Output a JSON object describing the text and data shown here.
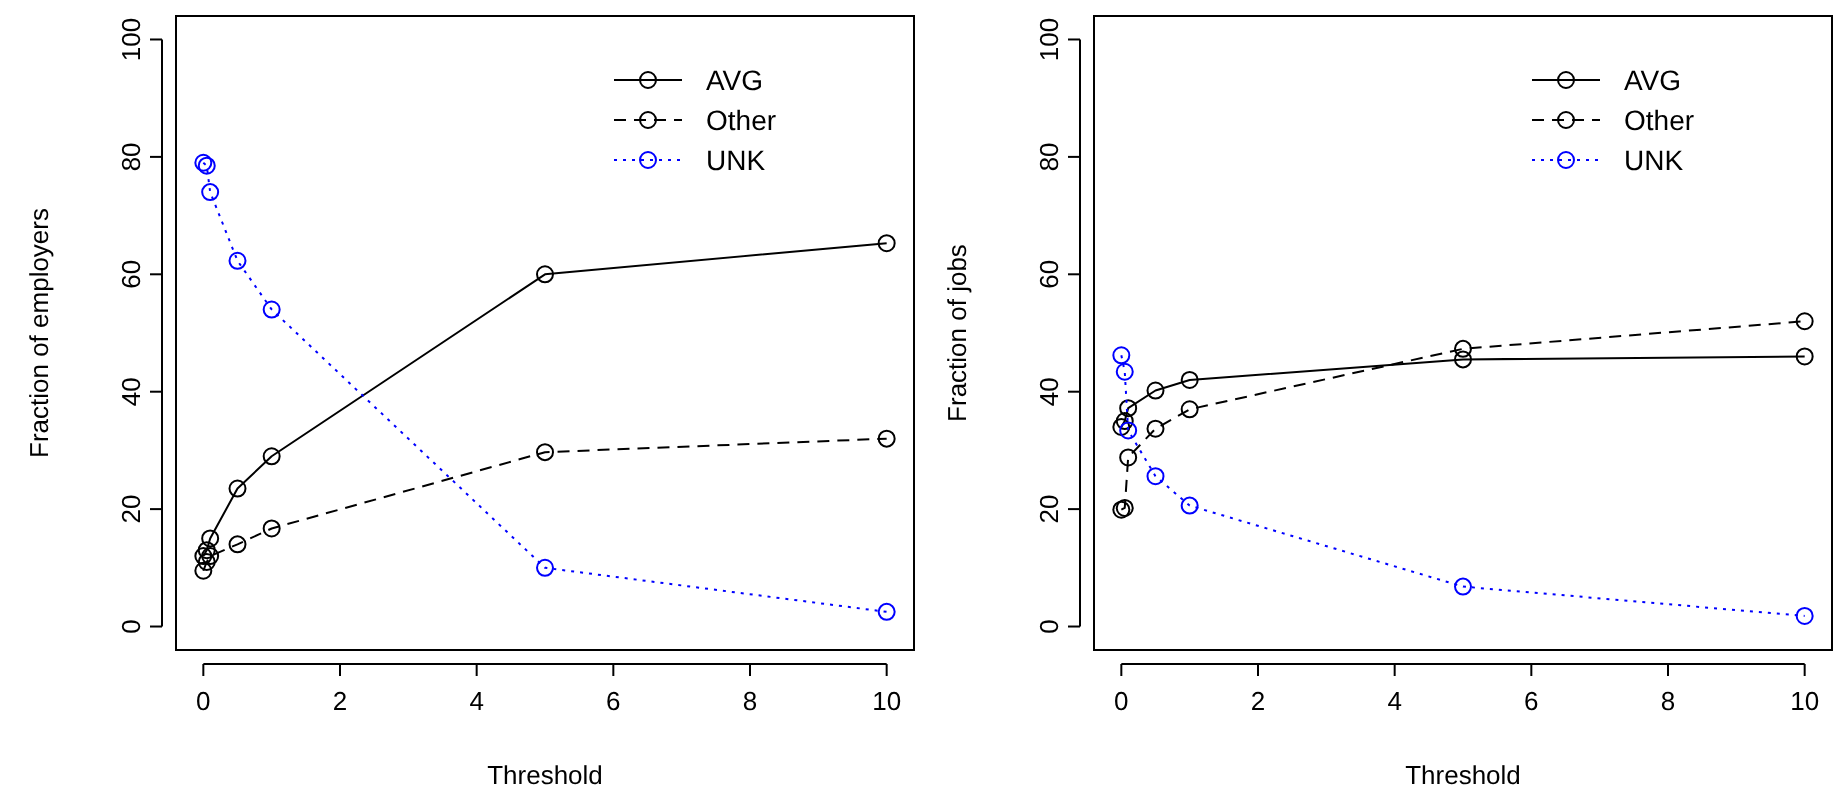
{
  "chart_data": [
    {
      "type": "line",
      "xlabel": "Threshold",
      "ylabel": "Fraction of employers",
      "x": [
        0,
        0.05,
        0.1,
        0.5,
        1,
        5,
        10
      ],
      "xlim": [
        -0.4,
        10.4
      ],
      "ylim": [
        -4,
        104
      ],
      "xticks": [
        0,
        2,
        4,
        6,
        8,
        10
      ],
      "yticks": [
        0,
        20,
        40,
        60,
        80,
        100
      ],
      "legend": "top right",
      "marker": "circle",
      "series": [
        {
          "name": "AVG",
          "color": "#000000",
          "line_style": "solid",
          "values": [
            12,
            13,
            15,
            23.5,
            29,
            60,
            65.3
          ]
        },
        {
          "name": "Other",
          "color": "#000000",
          "line_style": "dashed",
          "values": [
            9.5,
            11,
            12,
            14,
            16.7,
            29.7,
            32
          ]
        },
        {
          "name": "UNK",
          "color": "#0000ff",
          "line_style": "dotted",
          "values": [
            79,
            78.5,
            74,
            62.3,
            54,
            10,
            2.5
          ]
        }
      ]
    },
    {
      "type": "line",
      "xlabel": "Threshold",
      "ylabel": "Fraction of jobs",
      "x": [
        0,
        0.05,
        0.1,
        0.5,
        1,
        5,
        10
      ],
      "xlim": [
        -0.4,
        10.4
      ],
      "ylim": [
        -4,
        104
      ],
      "xticks": [
        0,
        2,
        4,
        6,
        8,
        10
      ],
      "yticks": [
        0,
        20,
        40,
        60,
        80,
        100
      ],
      "legend": "top right",
      "marker": "circle",
      "series": [
        {
          "name": "AVG",
          "color": "#000000",
          "line_style": "solid",
          "values": [
            34,
            35,
            37.2,
            40.2,
            42,
            45.5,
            46
          ]
        },
        {
          "name": "Other",
          "color": "#000000",
          "line_style": "dashed",
          "values": [
            19.9,
            20.2,
            28.8,
            33.7,
            37,
            47.3,
            52
          ]
        },
        {
          "name": "UNK",
          "color": "#0000ff",
          "line_style": "dotted",
          "values": [
            46.2,
            43.4,
            33.4,
            25.6,
            20.6,
            6.8,
            1.8
          ]
        }
      ]
    }
  ]
}
